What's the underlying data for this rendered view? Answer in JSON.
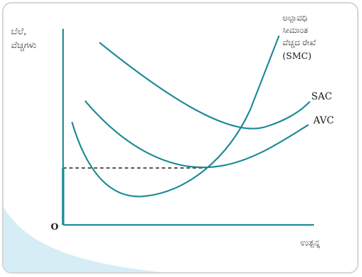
{
  "colors": {
    "curve": "#1c8a93",
    "axis": "#1c8a93",
    "dashed": "#1a1a1a",
    "wave": "#d7edf5"
  },
  "labels": {
    "y_axis_line1": "ಬೆಲೆ,",
    "y_axis_line2": "ವೆಚ್ಚಗಳು",
    "x_axis": "ಉತ್ಪನ್ನ",
    "origin": "O",
    "smc_line1": "ಅಲ್ಪಾವಧಿ",
    "smc_line2": "ಸೀಮಾಂತ",
    "smc_line3": "ವೆಚ್ಚದ ರೇಖೆ",
    "smc_line4": "(SMC)",
    "sac": "SAC",
    "avc": "AVC"
  }
}
